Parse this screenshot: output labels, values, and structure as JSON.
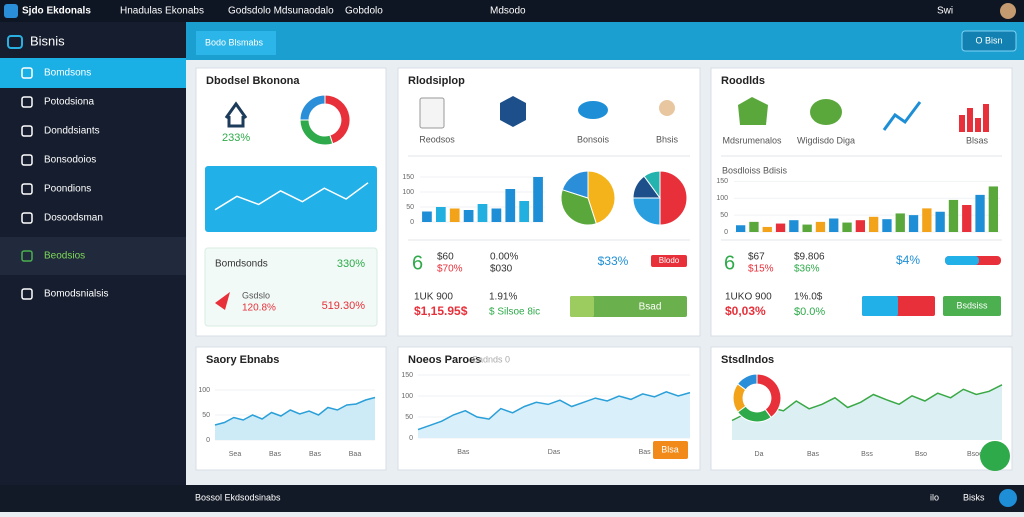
{
  "browser": {
    "tabs": [
      "Sjdo Ekdonals",
      "Hnadulas Ekonabs",
      "Godsdolo Mdsunaodalo",
      "Gobdolo",
      "Mdsodo"
    ],
    "user": "Swi"
  },
  "sidebar": {
    "title": "Bisnis",
    "items": [
      "Bomdsons",
      "Potodsiona",
      "Donddsiants",
      "Bonsodoios",
      "Poondions",
      "Dosoodsman",
      "Beodsios",
      "Bomodsnialsis"
    ]
  },
  "toolbar": {
    "tab": "Bodo Blsmabs",
    "button": "O Bisn"
  },
  "overview": {
    "title": "Dbodsel Bkonona",
    "stat": "233%",
    "donut": {
      "values": [
        45,
        30,
        25
      ],
      "colors": [
        "#e8303a",
        "#2eaa4a",
        "#2a8fd8"
      ]
    },
    "trend": {
      "values": [
        30,
        55,
        40,
        65,
        45,
        70,
        50,
        80
      ],
      "ylim": [
        0,
        100
      ]
    },
    "summary": {
      "label": "Bomdsonds",
      "value": "330%"
    },
    "detail": {
      "label": "Gsdslo",
      "value": "120.8%",
      "total": "519.30%"
    }
  },
  "relationship": {
    "title": "Rlodsiplop",
    "icons": [
      "Reodsos",
      "Bonsois",
      "Bhsis"
    ],
    "bars": {
      "values": [
        35,
        50,
        45,
        40,
        60,
        45,
        110,
        70,
        150
      ],
      "colors": [
        "#1e8fd6",
        "#22b0e0",
        "#f2a31a",
        "#1e8fd6",
        "#22b0e0",
        "#1e8fd6",
        "#1e8fd6",
        "#22b0e0",
        "#1e8fd6"
      ],
      "ylim": [
        0,
        180
      ],
      "yticks": [
        0,
        50,
        100,
        150
      ]
    },
    "pie1": {
      "values": [
        45,
        35,
        20
      ],
      "colors": [
        "#f4b31a",
        "#5aa83c",
        "#2a8fd8"
      ]
    },
    "pie2": {
      "values": [
        50,
        25,
        15,
        10
      ],
      "colors": [
        "#e8303a",
        "#2a9fe0",
        "#1d4f8a",
        "#25b3b0"
      ]
    },
    "stats": {
      "big": "6",
      "a1": "$60",
      "a2": "$70%",
      "b1": "0.00%",
      "b2": "$030",
      "c": "$33%",
      "pill": "Blodo",
      "d1": "1UK 900",
      "d2": "$1,15.95$",
      "e1": "1.91%",
      "e2": "$ Silsoe 8ic",
      "button": "Bsad"
    }
  },
  "reports": {
    "title": "Roodlds",
    "icons": [
      "Mdsrumenalos",
      "Wigdisdo Diga",
      "Blsas"
    ],
    "chart_title": "Bosdloiss Bdisis",
    "bars": {
      "values": [
        20,
        30,
        15,
        25,
        35,
        22,
        30,
        40,
        28,
        35,
        45,
        38,
        55,
        50,
        70,
        60,
        95,
        80,
        110,
        135
      ],
      "colors": [
        "#1e8fd6",
        "#5aa83c",
        "#f2a31a",
        "#e8303a",
        "#1e8fd6",
        "#5aa83c",
        "#f2a31a",
        "#1e8fd6",
        "#5aa83c",
        "#e8303a",
        "#f2a31a",
        "#1e8fd6",
        "#5aa83c",
        "#1e8fd6",
        "#f2a31a",
        "#1e8fd6",
        "#5aa83c",
        "#e8303a",
        "#1e8fd6",
        "#5aa83c"
      ],
      "ylim": [
        0,
        160
      ],
      "yticks": [
        0,
        50,
        100,
        150
      ]
    },
    "stats": {
      "big": "6",
      "a1": "$67",
      "a2": "$15%",
      "b1": "$9.806",
      "b2": "$36%",
      "c": "$4%",
      "d1": "1UKO 900",
      "d2": "$0,03%",
      "e1": "1%.0$",
      "e2": "$0.0%",
      "button": "Bsdsiss"
    }
  },
  "story": {
    "title": "Saory Ebnabs",
    "line": {
      "values": [
        30,
        35,
        45,
        40,
        50,
        42,
        55,
        48,
        60,
        52,
        58,
        50,
        65,
        60,
        70,
        72,
        80,
        85
      ],
      "ylim": [
        0,
        120
      ],
      "yticks": [
        0,
        50,
        100
      ],
      "xlabels": [
        "Sea",
        "Bas",
        "Bas",
        "Baa"
      ]
    }
  },
  "news": {
    "title": "Noeos Paroes",
    "subtitle": "Sadnds 0",
    "line": {
      "values": [
        20,
        30,
        40,
        55,
        65,
        50,
        45,
        70,
        60,
        75,
        85,
        80,
        90,
        75,
        85,
        95,
        88,
        100,
        92,
        105,
        98,
        110,
        100,
        108
      ],
      "ylim": [
        0,
        150
      ],
      "yticks": [
        0,
        50,
        100,
        150
      ],
      "xlabels": [
        "Bas",
        "Das",
        "Bas"
      ]
    },
    "button": "Blsa"
  },
  "stats": {
    "title": "Stsdlndos",
    "donut": {
      "values": [
        40,
        25,
        20,
        15
      ],
      "colors": [
        "#e8303a",
        "#2eaa4a",
        "#f2a31a",
        "#2a8fd8"
      ]
    },
    "line": {
      "values": [
        30,
        40,
        35,
        50,
        45,
        60,
        48,
        55,
        65,
        50,
        58,
        70,
        62,
        55,
        68,
        60,
        72,
        65,
        78,
        70,
        75,
        85
      ],
      "ylim": [
        0,
        100
      ],
      "xlabels": [
        "Da",
        "Bas",
        "Bss",
        "Bso",
        "Bsoo"
      ]
    }
  },
  "taskbar": {
    "left": "Bossol Ekdsodsinabs",
    "items": [
      "ilo",
      "Bisks"
    ]
  }
}
